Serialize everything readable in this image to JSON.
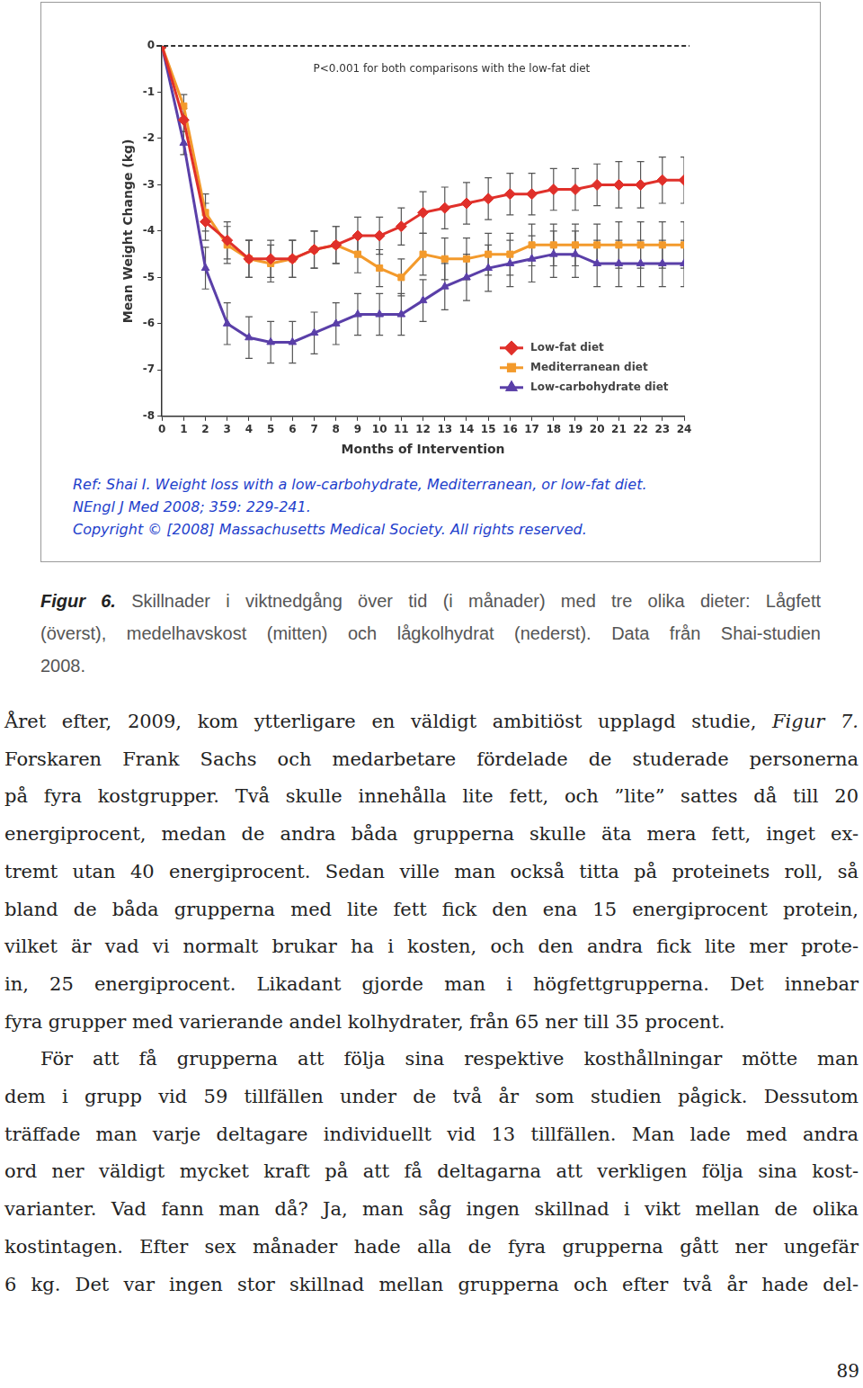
{
  "chart_data": {
    "type": "line",
    "x_label": "Months of Intervention",
    "y_label": "Mean Weight Change (kg)",
    "annotation": "P<0.001 for both comparisons with the low-fat diet",
    "x": [
      0,
      1,
      2,
      3,
      4,
      5,
      6,
      7,
      8,
      9,
      10,
      11,
      12,
      13,
      14,
      15,
      16,
      17,
      18,
      19,
      20,
      21,
      22,
      23,
      24
    ],
    "xlim": [
      0,
      24
    ],
    "xticks": [
      0,
      1,
      2,
      3,
      4,
      5,
      6,
      7,
      8,
      9,
      10,
      11,
      12,
      13,
      14,
      15,
      16,
      17,
      18,
      19,
      20,
      21,
      22,
      23,
      24
    ],
    "ylim": [
      -8,
      0
    ],
    "yticks": [
      0,
      -1,
      -2,
      -3,
      -4,
      -5,
      -6,
      -7,
      -8
    ],
    "grid": false,
    "legend": "lower right",
    "series": [
      {
        "name": "Low-fat diet",
        "color": "#e0302a",
        "marker": "diamond",
        "values": [
          0,
          -1.6,
          -3.8,
          -4.2,
          -4.6,
          -4.6,
          -4.6,
          -4.4,
          -4.3,
          -4.1,
          -4.1,
          -3.9,
          -3.6,
          -3.5,
          -3.4,
          -3.3,
          -3.2,
          -3.2,
          -3.1,
          -3.1,
          -3.0,
          -3.0,
          -3.0,
          -2.9,
          -2.9
        ],
        "errors": [
          0,
          0.25,
          0.4,
          0.4,
          0.4,
          0.4,
          0.4,
          0.4,
          0.4,
          0.4,
          0.4,
          0.4,
          0.45,
          0.45,
          0.45,
          0.45,
          0.45,
          0.45,
          0.45,
          0.45,
          0.45,
          0.5,
          0.5,
          0.5,
          0.5
        ]
      },
      {
        "name": "Mediterranean diet",
        "color": "#f39a2c",
        "marker": "square",
        "values": [
          0,
          -1.3,
          -3.6,
          -4.3,
          -4.6,
          -4.7,
          -4.6,
          -4.4,
          -4.3,
          -4.5,
          -4.8,
          -5.0,
          -4.5,
          -4.6,
          -4.6,
          -4.5,
          -4.5,
          -4.3,
          -4.3,
          -4.3,
          -4.3,
          -4.3,
          -4.3,
          -4.3,
          -4.3
        ],
        "errors": [
          0,
          0.25,
          0.4,
          0.4,
          0.4,
          0.4,
          0.4,
          0.4,
          0.4,
          0.4,
          0.4,
          0.4,
          0.45,
          0.45,
          0.45,
          0.45,
          0.45,
          0.45,
          0.45,
          0.45,
          0.45,
          0.5,
          0.5,
          0.5,
          0.5
        ]
      },
      {
        "name": "Low-carbohydrate diet",
        "color": "#5a3fa8",
        "marker": "triangle",
        "values": [
          0,
          -2.1,
          -4.8,
          -6.0,
          -6.3,
          -6.4,
          -6.4,
          -6.2,
          -6.0,
          -5.8,
          -5.8,
          -5.8,
          -5.5,
          -5.2,
          -5.0,
          -4.8,
          -4.7,
          -4.6,
          -4.5,
          -4.5,
          -4.7,
          -4.7,
          -4.7,
          -4.7,
          -4.7
        ],
        "errors": [
          0,
          0.25,
          0.45,
          0.45,
          0.45,
          0.45,
          0.45,
          0.45,
          0.45,
          0.45,
          0.45,
          0.45,
          0.45,
          0.5,
          0.5,
          0.5,
          0.5,
          0.5,
          0.5,
          0.5,
          0.5,
          0.5,
          0.5,
          0.5,
          0.5
        ]
      }
    ]
  },
  "figure": {
    "reference": [
      "Ref: Shai I. Weight loss with a low-carbohydrate, Mediterranean, or low-fat diet.",
      "NEngl J Med 2008; 359: 229-241.",
      "Copyright © [2008] Massachusetts Medical Society. All rights reserved."
    ]
  },
  "caption": {
    "label": "Figur 6.",
    "lines": [
      "Skillnader i viktnedgång över tid (i månader) med tre olika dieter: Lågfett",
      "(överst), medelhavskost (mitten) och lågkolhydrat (nederst). Data från Shai-studien",
      "2008."
    ]
  },
  "body": {
    "paragraphs": [
      [
        [
          {
            "text": "Året efter, 2009, kom ytterligare en väldigt ambitiöst upplagd studie, "
          },
          {
            "text": "Figur 7.",
            "italic": true
          }
        ],
        "Forskaren Frank Sachs och medarbetare fördelade de studerade personerna",
        "på fyra kostgrupper. Två skulle innehålla lite fett, och ”lite” sattes då till 20",
        "energiprocent, medan de andra båda grupperna skulle äta mera fett, inget ex-",
        "tremt utan 40 energiprocent. Sedan ville man också titta på proteinets roll, så",
        "bland de båda grupperna med lite fett fick den ena 15 energiprocent protein,",
        "vilket är vad vi normalt brukar ha i kosten, och den andra fick lite mer prote-",
        "in, 25 energiprocent. Likadant gjorde man i högfettgrupperna. Det innebar",
        "fyra grupper med varierande andel kolhydrater, från 65 ner till 35 procent."
      ],
      [
        "För att få grupperna att följa sina respektive kosthållningar mötte man",
        "dem i grupp vid 59 tillfällen under de två år som studien pågick. Dessutom",
        "träffade man varje deltagare individuellt vid 13 tillfällen. Man lade med andra",
        "ord ner väldigt mycket kraft på att få deltagarna att verkligen följa sina kost-",
        "varianter. Vad fann man då? Ja, man såg ingen skillnad i vikt mellan de olika",
        "kostintagen. Efter sex månader hade alla de fyra grupperna gått ner ungefär",
        "6 kg. Det var ingen stor skillnad mellan grupperna och efter två år hade del-"
      ]
    ]
  },
  "page_number": "89"
}
